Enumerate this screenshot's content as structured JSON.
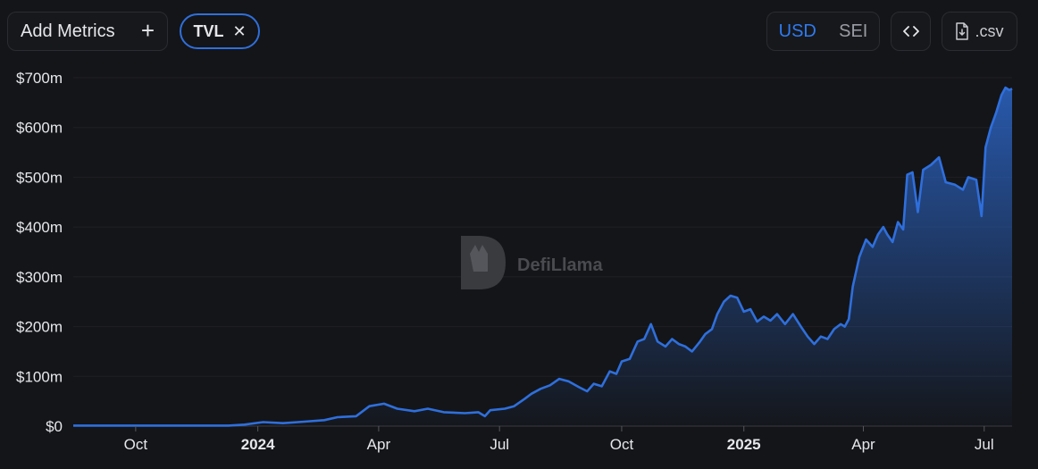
{
  "toolbar": {
    "add_metrics_label": "Add Metrics",
    "add_metrics_plus": "+",
    "metric_chip": {
      "label": "TVL",
      "remove_glyph": "✕"
    },
    "denomination": {
      "options": [
        "USD",
        "SEI"
      ],
      "selected": "USD"
    },
    "embed_icon": "code-brackets-icon",
    "csv_label": ".csv",
    "csv_icon": "file-download-icon"
  },
  "watermark": {
    "text": "DefiLlama"
  },
  "colors": {
    "line": "#2f6fdc",
    "accent": "#2f7bf0",
    "background": "#141518"
  },
  "chart_data": {
    "type": "area",
    "title": "",
    "xlabel": "",
    "ylabel": "",
    "y_tick_labels": [
      "$0",
      "$100m",
      "$200m",
      "$300m",
      "$400m",
      "$500m",
      "$600m",
      "$700m"
    ],
    "y_ticks": [
      0,
      100,
      200,
      300,
      400,
      500,
      600,
      700
    ],
    "ylim": [
      0,
      700
    ],
    "x_tick_labels": [
      {
        "label": "Oct",
        "date": "2023-10-01",
        "bold": false
      },
      {
        "label": "2024",
        "date": "2024-01-01",
        "bold": true
      },
      {
        "label": "Apr",
        "date": "2024-04-01",
        "bold": false
      },
      {
        "label": "Jul",
        "date": "2024-07-01",
        "bold": false
      },
      {
        "label": "Oct",
        "date": "2024-10-01",
        "bold": false
      },
      {
        "label": "2025",
        "date": "2025-01-01",
        "bold": true
      },
      {
        "label": "Apr",
        "date": "2025-04-01",
        "bold": false
      },
      {
        "label": "Jul",
        "date": "2025-07-01",
        "bold": false
      }
    ],
    "xlim": [
      "2023-08-15",
      "2025-07-22"
    ],
    "y_unit": "USD millions",
    "grid": true,
    "series": [
      {
        "values": [
          [
            "2023-08-15",
            1
          ],
          [
            "2023-09-15",
            1
          ],
          [
            "2023-10-15",
            1
          ],
          [
            "2023-11-15",
            1
          ],
          [
            "2023-12-10",
            1
          ],
          [
            "2023-12-22",
            3
          ],
          [
            "2024-01-05",
            8
          ],
          [
            "2024-01-20",
            6
          ],
          [
            "2024-02-05",
            9
          ],
          [
            "2024-02-20",
            12
          ],
          [
            "2024-03-01",
            18
          ],
          [
            "2024-03-15",
            20
          ],
          [
            "2024-03-25",
            40
          ],
          [
            "2024-04-05",
            45
          ],
          [
            "2024-04-15",
            35
          ],
          [
            "2024-04-28",
            30
          ],
          [
            "2024-05-08",
            35
          ],
          [
            "2024-05-20",
            28
          ],
          [
            "2024-06-05",
            26
          ],
          [
            "2024-06-15",
            28
          ],
          [
            "2024-06-20",
            20
          ],
          [
            "2024-06-24",
            32
          ],
          [
            "2024-07-05",
            35
          ],
          [
            "2024-07-12",
            40
          ],
          [
            "2024-07-20",
            55
          ],
          [
            "2024-07-25",
            65
          ],
          [
            "2024-08-01",
            75
          ],
          [
            "2024-08-08",
            82
          ],
          [
            "2024-08-15",
            95
          ],
          [
            "2024-08-22",
            90
          ],
          [
            "2024-08-30",
            78
          ],
          [
            "2024-09-05",
            70
          ],
          [
            "2024-09-10",
            85
          ],
          [
            "2024-09-16",
            80
          ],
          [
            "2024-09-22",
            110
          ],
          [
            "2024-09-27",
            105
          ],
          [
            "2024-10-01",
            130
          ],
          [
            "2024-10-07",
            135
          ],
          [
            "2024-10-13",
            170
          ],
          [
            "2024-10-18",
            175
          ],
          [
            "2024-10-23",
            205
          ],
          [
            "2024-10-28",
            170
          ],
          [
            "2024-11-03",
            160
          ],
          [
            "2024-11-08",
            175
          ],
          [
            "2024-11-13",
            165
          ],
          [
            "2024-11-18",
            160
          ],
          [
            "2024-11-23",
            150
          ],
          [
            "2024-11-29",
            170
          ],
          [
            "2024-12-03",
            185
          ],
          [
            "2024-12-08",
            195
          ],
          [
            "2024-12-12",
            225
          ],
          [
            "2024-12-17",
            250
          ],
          [
            "2024-12-22",
            262
          ],
          [
            "2024-12-27",
            258
          ],
          [
            "2025-01-01",
            230
          ],
          [
            "2025-01-06",
            235
          ],
          [
            "2025-01-11",
            210
          ],
          [
            "2025-01-16",
            220
          ],
          [
            "2025-01-21",
            212
          ],
          [
            "2025-01-26",
            225
          ],
          [
            "2025-02-01",
            205
          ],
          [
            "2025-02-07",
            225
          ],
          [
            "2025-02-13",
            200
          ],
          [
            "2025-02-18",
            180
          ],
          [
            "2025-02-23",
            165
          ],
          [
            "2025-02-28",
            180
          ],
          [
            "2025-03-05",
            175
          ],
          [
            "2025-03-10",
            195
          ],
          [
            "2025-03-15",
            205
          ],
          [
            "2025-03-18",
            200
          ],
          [
            "2025-03-21",
            215
          ],
          [
            "2025-03-24",
            280
          ],
          [
            "2025-03-29",
            340
          ],
          [
            "2025-04-03",
            375
          ],
          [
            "2025-04-08",
            360
          ],
          [
            "2025-04-12",
            385
          ],
          [
            "2025-04-16",
            400
          ],
          [
            "2025-04-19",
            385
          ],
          [
            "2025-04-23",
            370
          ],
          [
            "2025-04-27",
            410
          ],
          [
            "2025-05-01",
            395
          ],
          [
            "2025-05-04",
            505
          ],
          [
            "2025-05-08",
            510
          ],
          [
            "2025-05-12",
            430
          ],
          [
            "2025-05-16",
            515
          ],
          [
            "2025-05-22",
            525
          ],
          [
            "2025-05-28",
            540
          ],
          [
            "2025-06-02",
            490
          ],
          [
            "2025-06-09",
            485
          ],
          [
            "2025-06-15",
            475
          ],
          [
            "2025-06-19",
            500
          ],
          [
            "2025-06-25",
            495
          ],
          [
            "2025-06-29",
            422
          ],
          [
            "2025-07-02",
            560
          ],
          [
            "2025-07-06",
            600
          ],
          [
            "2025-07-10",
            630
          ],
          [
            "2025-07-14",
            665
          ],
          [
            "2025-07-17",
            680
          ],
          [
            "2025-07-20",
            675
          ],
          [
            "2025-07-22",
            678
          ]
        ]
      }
    ]
  }
}
